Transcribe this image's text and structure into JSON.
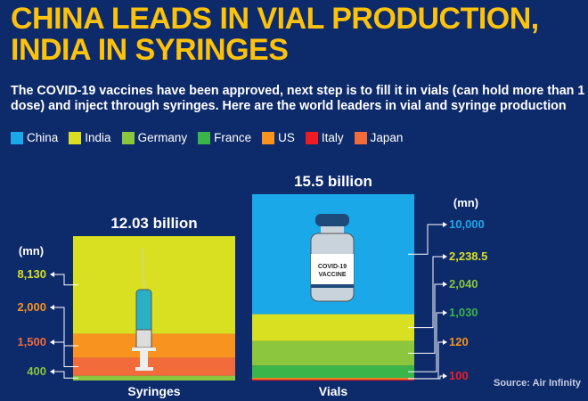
{
  "title_line1": "CHINA LEADS IN VIAL PRODUCTION,",
  "title_line2": "INDIA IN SYRINGES",
  "subtitle": "The COVID-19 vaccines have been approved, next step is to fill it in vials (can hold more than 1 dose) and inject through syringes. Here are the world leaders in vial and syringe production",
  "legend": [
    {
      "name": "China",
      "color": "#1aa8e8"
    },
    {
      "name": "India",
      "color": "#d9e021"
    },
    {
      "name": "Germany",
      "color": "#8cc63f"
    },
    {
      "name": "France",
      "color": "#39b54a"
    },
    {
      "name": "US",
      "color": "#f7931e"
    },
    {
      "name": "Italy",
      "color": "#ed1c24"
    },
    {
      "name": "Japan",
      "color": "#f26b3a"
    }
  ],
  "source": "Source: Air Infinity",
  "chart_data": [
    {
      "type": "bar",
      "stacked": true,
      "category": "Syringes",
      "total_label": "12.03 billion",
      "unit_label": "(mn)",
      "icon": "syringe-icon",
      "segments": [
        {
          "country": "Germany",
          "value": 400,
          "label": "400"
        },
        {
          "country": "Japan",
          "value": 1500,
          "label": "1,500"
        },
        {
          "country": "US",
          "value": 2000,
          "label": "2,000"
        },
        {
          "country": "India",
          "value": 8130,
          "label": "8,130"
        }
      ]
    },
    {
      "type": "bar",
      "stacked": true,
      "category": "Vials",
      "total_label": "15.5 billion",
      "unit_label": "(mn)",
      "icon": "vaccine-vial-icon",
      "vial_label": "COVID-19 VACCINE",
      "segments": [
        {
          "country": "Italy",
          "value": 100,
          "label": "100"
        },
        {
          "country": "US",
          "value": 120,
          "label": "120"
        },
        {
          "country": "France",
          "value": 1030,
          "label": "1,030"
        },
        {
          "country": "Germany",
          "value": 2040,
          "label": "2,040"
        },
        {
          "country": "India",
          "value": 2238.5,
          "label": "2,238.5"
        },
        {
          "country": "China",
          "value": 10000,
          "label": "10,000"
        }
      ]
    }
  ]
}
